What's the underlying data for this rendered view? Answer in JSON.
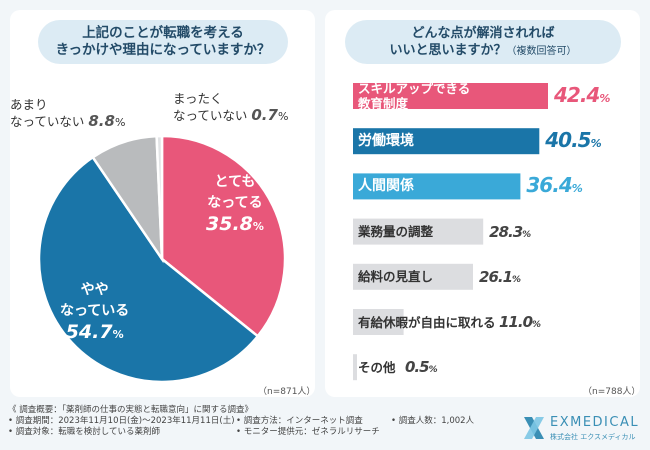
{
  "left": {
    "question": [
      "上記のことが転職を考える",
      "きっかけや理由になっていますか？"
    ],
    "n_note": "（n=871人）"
  },
  "right": {
    "question": "どんな点が解消されれば",
    "question_line2": "いいと思いますか？",
    "question_note": "（複数回答可）",
    "n_note": "（n=788人）"
  },
  "chart_data": [
    {
      "type": "pie",
      "title": "上記のことが転職を考えるきっかけや理由になっていますか？",
      "n": "n=871人",
      "unit": "%",
      "slices": [
        {
          "label": "とても\nなってる",
          "label_lines": [
            "とても",
            "なってる"
          ],
          "value": 35.8,
          "value_text": "35.8",
          "color": "#e8577a"
        },
        {
          "label": "やや\nなっている",
          "label_lines": [
            "やや",
            "なっている"
          ],
          "value": 54.7,
          "value_text": "54.7",
          "color": "#1a75a8"
        },
        {
          "label": "あまり\nなっていない",
          "label_lines": [
            "あまり",
            "なっていない"
          ],
          "value": 8.8,
          "value_text": "8.8",
          "color": "#b9bbbd"
        },
        {
          "label": "まったく\nなっていない",
          "label_lines": [
            "まったく",
            "なっていない"
          ],
          "value": 0.7,
          "value_text": "0.7",
          "color": "#e2e4e6"
        }
      ]
    },
    {
      "type": "bar",
      "orientation": "horizontal",
      "title": "どんな点が解消されればいいと思いますか？（複数回答可）",
      "n": "n=788人",
      "unit": "%",
      "categories": [
        "スキルアップできる教育制度",
        "労働環境",
        "人間関係",
        "業務量の調整",
        "給料の見直し",
        "有給休暇が自由に取れる",
        "その他"
      ],
      "category_lines": [
        [
          "スキルアップできる",
          "教育制度"
        ],
        [
          "労働環境"
        ],
        [
          "人間関係"
        ],
        [
          "業務量の調整"
        ],
        [
          "給料の見直し"
        ],
        [
          "有給休暇が自由に取れる"
        ],
        [
          "その他"
        ]
      ],
      "values": [
        42.4,
        40.5,
        36.4,
        28.3,
        26.1,
        11.0,
        0.5
      ],
      "value_texts": [
        "42.4",
        "40.5",
        "36.4",
        "28.3",
        "26.1",
        "11.0",
        "0.5"
      ],
      "colors": [
        "#e8577a",
        "#1a75a8",
        "#3aa9d8",
        "#dcdde0",
        "#dcdde0",
        "#dcdde0",
        "#dcdde0"
      ],
      "value_colors": [
        "#e8577a",
        "#1a75a8",
        "#3aa9d8",
        "#444444",
        "#444444",
        "#444444",
        "#444444"
      ],
      "xlim": [
        0,
        42.4
      ]
    }
  ],
  "footer": {
    "line1": "《 調査概要：「薬剤師の仕事の実態と転職意向」に関する調査》",
    "period": "• 調査期間：2023年11月10日(金)～2023年11月11日(土)",
    "method": "• 調査方法：インターネット調査",
    "count": "• 調査人数：1,002人",
    "target": "• 調査対象：転職を検討している薬剤師",
    "provider": "• モニター提供元：ゼネラルリサーチ"
  },
  "logo": {
    "name": "EXMEDICAL",
    "sub": "株式会社 エクスメディカル",
    "colors": [
      "#3a8fb5",
      "#7cc7e4"
    ]
  }
}
